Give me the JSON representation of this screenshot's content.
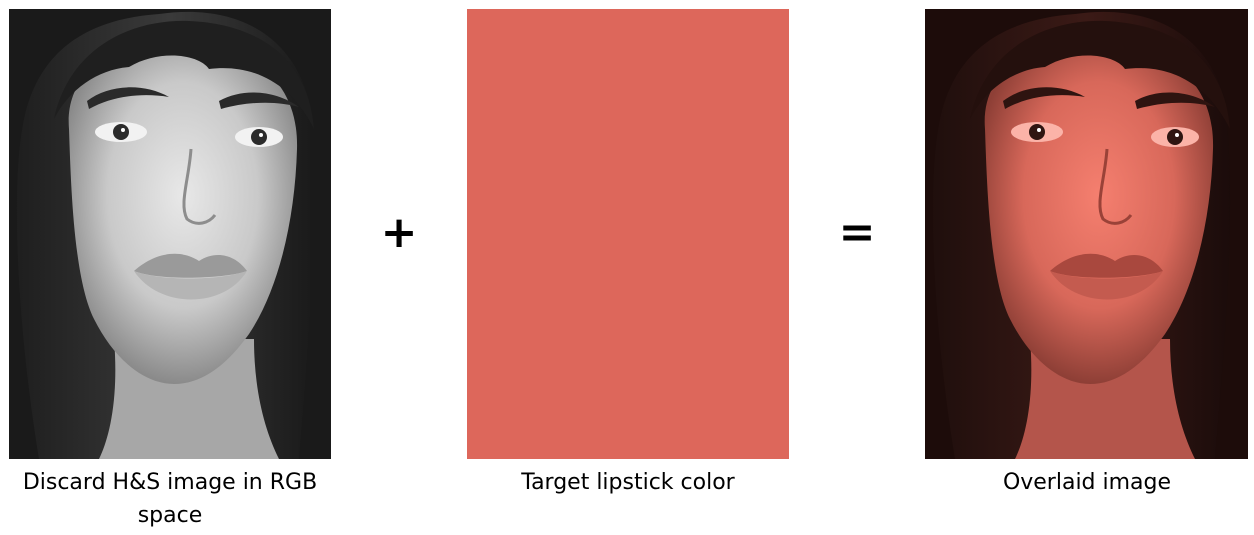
{
  "panels": {
    "left": {
      "caption": "Discard H&S image in RGB space",
      "content": "grayscale-face-photo"
    },
    "middle": {
      "caption": "Target lipstick color",
      "swatch_color": "#dd675b"
    },
    "right": {
      "caption": "Overlaid image",
      "content": "tinted-face-photo",
      "tint_color": "#dd675b"
    }
  },
  "operators": {
    "plus": "+",
    "equals": "="
  }
}
